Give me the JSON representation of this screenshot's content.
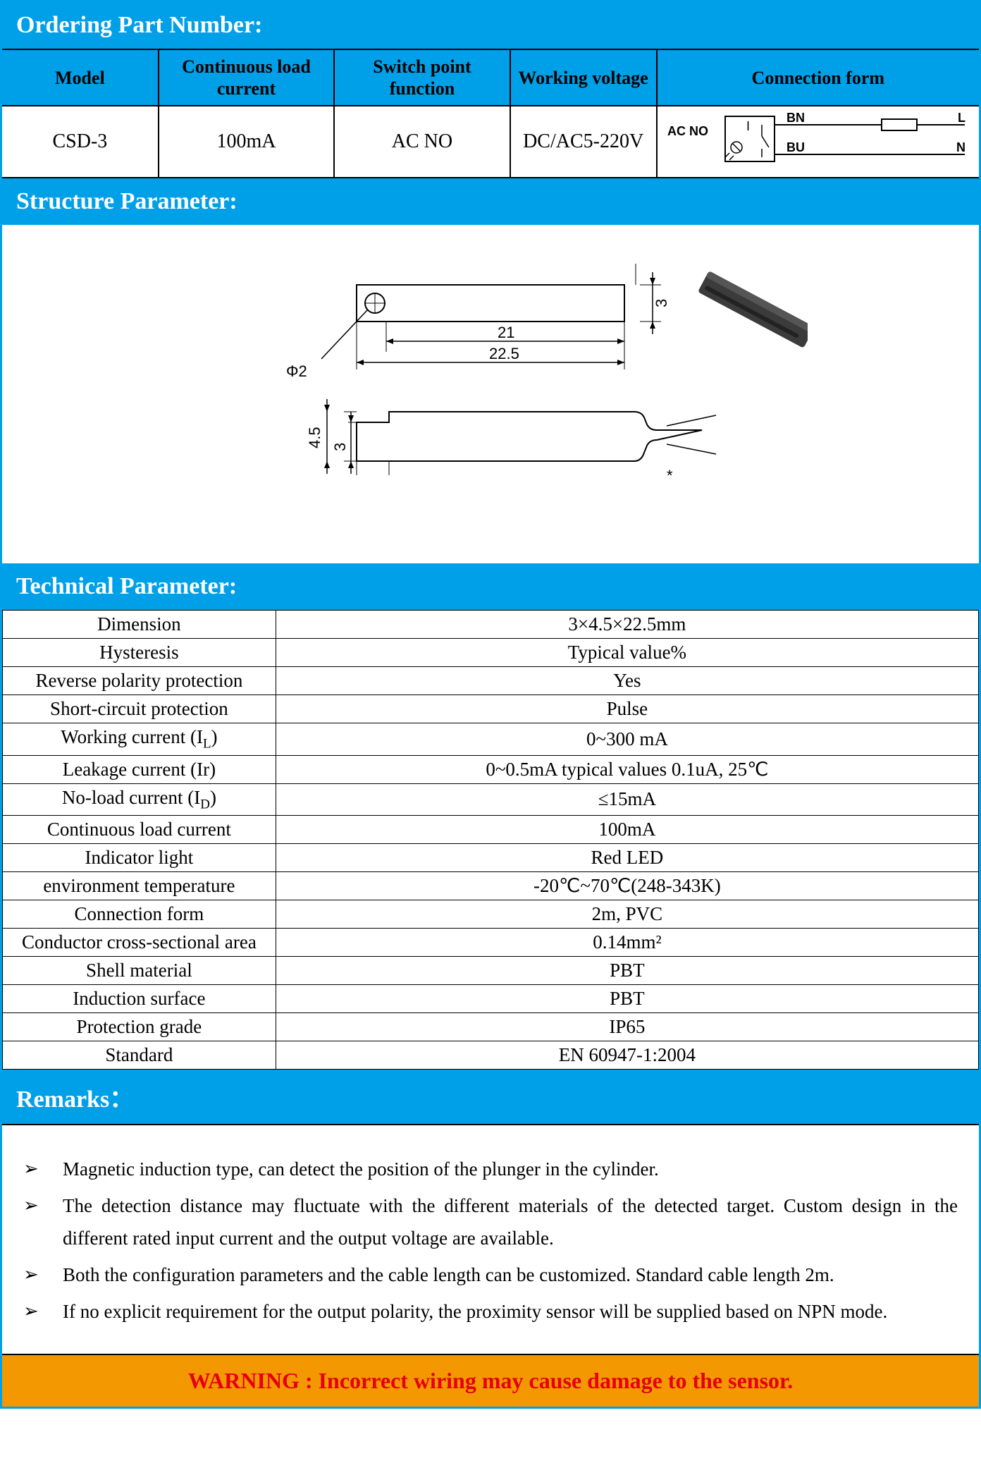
{
  "colors": {
    "brand_blue": "#00a0e9",
    "warning_bg": "#f39800",
    "warning_text": "#e60012",
    "border": "#000000",
    "white": "#ffffff"
  },
  "ordering": {
    "title": "Ordering Part Number:",
    "headers": {
      "model": "Model",
      "cont_load": "Continuous load current",
      "switch_point": "Switch point function",
      "working_voltage": "Working voltage",
      "conn_form": "Connection form"
    },
    "row": {
      "model": "CSD-3",
      "cont_load": "100mA",
      "switch_point": "AC   NO",
      "working_voltage": "DC/AC5-220V",
      "conn_label": "AC NO",
      "wire_bn": "BN",
      "wire_bu": "BU",
      "wire_l": "L",
      "wire_n": "N"
    }
  },
  "structure": {
    "title": "Structure Parameter:",
    "dims": {
      "phi2": "Φ2",
      "d21": "21",
      "d225": "22.5",
      "d3": "3",
      "d45": "4.5",
      "d3b": "3",
      "star": "*"
    }
  },
  "technical": {
    "title": "Technical Parameter:",
    "rows": [
      {
        "label": "Dimension",
        "value": "3×4.5×22.5mm"
      },
      {
        "label": "Hysteresis",
        "value": "Typical value%"
      },
      {
        "label": "Reverse polarity protection",
        "value": "Yes"
      },
      {
        "label": "Short-circuit protection",
        "value": "Pulse"
      },
      {
        "label": "Working current (I<sub>L</sub>)",
        "value": "0~300 mA"
      },
      {
        "label": "Leakage current (Ir)",
        "value": "0~0.5mA    typical values 0.1uA, 25℃"
      },
      {
        "label": "No-load current (I<sub>D</sub>)",
        "value": "≤15mA"
      },
      {
        "label": "Continuous load current",
        "value": "100mA"
      },
      {
        "label": "Indicator light",
        "value": "Red LED"
      },
      {
        "label": "environment temperature",
        "value": "-20℃~70℃(248-343K)"
      },
      {
        "label": "Connection form",
        "value": "2m, PVC"
      },
      {
        "label": "Conductor cross-sectional area",
        "value": "0.14mm²"
      },
      {
        "label": "Shell material",
        "value": "PBT"
      },
      {
        "label": "Induction surface",
        "value": "PBT"
      },
      {
        "label": "Protection grade",
        "value": "IP65"
      },
      {
        "label": "Standard",
        "value": "EN 60947-1:2004"
      }
    ]
  },
  "remarks": {
    "title": "Remarks：",
    "items": [
      "Magnetic induction type, can detect the position of the plunger in the cylinder.",
      "The detection distance may fluctuate with the different materials of the detected target. Custom design in the different rated input current and the output voltage are available.",
      "Both the configuration parameters and the cable length can be customized. Standard cable length 2m.",
      "If no explicit requirement for the output polarity, the proximity sensor will be supplied based on NPN mode."
    ]
  },
  "warning": "WARNING : Incorrect wiring may cause damage to the sensor."
}
